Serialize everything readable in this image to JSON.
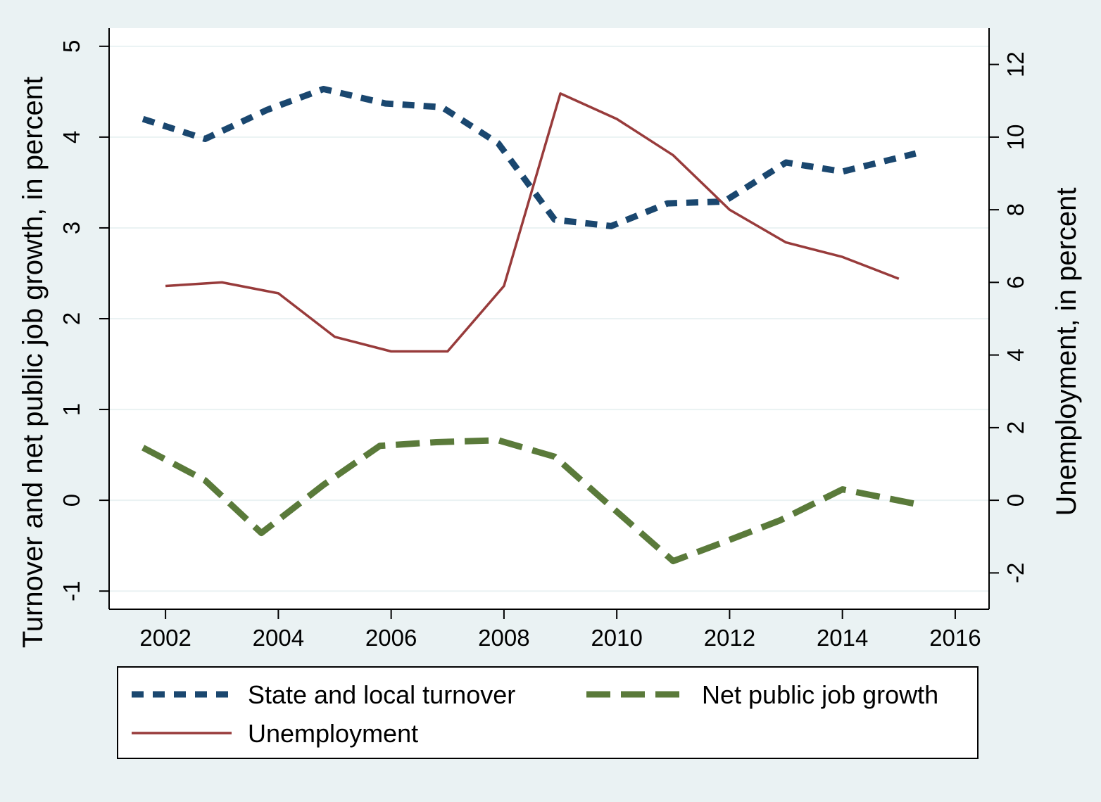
{
  "chart_data": {
    "type": "line",
    "xlabel": "",
    "ylabel": "Turnover and net public job growth, in percent",
    "y2label": "Unemployment, in percent",
    "xlim": [
      2001.0,
      2016.6
    ],
    "ylim": [
      -1.2,
      5.2
    ],
    "y2lim": [
      -3.0,
      13.0
    ],
    "x_ticks": [
      "2002",
      "2004",
      "2006",
      "2008",
      "2010",
      "2012",
      "2014",
      "2016"
    ],
    "y_ticks": [
      "-1",
      "0",
      "1",
      "2",
      "3",
      "4",
      "5"
    ],
    "y2_ticks": [
      "-2",
      "0",
      "2",
      "4",
      "6",
      "8",
      "10",
      "12"
    ],
    "grid": true,
    "legend_position": "bottom",
    "series": [
      {
        "name": "State and local turnover",
        "axis": "left",
        "color": "#1a476f",
        "style": "short-dash",
        "points": [
          [
            2001.6,
            4.2
          ],
          [
            2002.7,
            3.98
          ],
          [
            2003.8,
            4.3
          ],
          [
            2004.8,
            4.53
          ],
          [
            2005.9,
            4.37
          ],
          [
            2006.9,
            4.33
          ],
          [
            2007.9,
            3.93
          ],
          [
            2008.9,
            3.09
          ],
          [
            2009.9,
            3.02
          ],
          [
            2010.9,
            3.27
          ],
          [
            2011.9,
            3.29
          ],
          [
            2013.0,
            3.72
          ],
          [
            2014.0,
            3.62
          ],
          [
            2015.3,
            3.82
          ]
        ]
      },
      {
        "name": "Net public job growth",
        "axis": "left",
        "color": "#5a7a3a",
        "style": "long-dash",
        "points": [
          [
            2001.6,
            0.58
          ],
          [
            2002.7,
            0.22
          ],
          [
            2003.7,
            -0.36
          ],
          [
            2004.8,
            0.17
          ],
          [
            2005.8,
            0.6
          ],
          [
            2006.8,
            0.64
          ],
          [
            2007.9,
            0.66
          ],
          [
            2008.9,
            0.48
          ],
          [
            2009.9,
            -0.07
          ],
          [
            2011.0,
            -0.67
          ],
          [
            2011.9,
            -0.46
          ],
          [
            2012.9,
            -0.22
          ],
          [
            2014.0,
            0.12
          ],
          [
            2015.3,
            -0.04
          ]
        ]
      },
      {
        "name": "Unemployment",
        "axis": "right",
        "color": "#983b3b",
        "style": "solid",
        "points": [
          [
            2002.0,
            5.9
          ],
          [
            2003.0,
            6.0
          ],
          [
            2004.0,
            5.7
          ],
          [
            2005.0,
            4.5
          ],
          [
            2006.0,
            4.1
          ],
          [
            2007.0,
            4.1
          ],
          [
            2008.0,
            5.9
          ],
          [
            2009.0,
            11.2
          ],
          [
            2010.0,
            10.5
          ],
          [
            2011.0,
            9.5
          ],
          [
            2012.0,
            8.0
          ],
          [
            2013.0,
            7.1
          ],
          [
            2014.0,
            6.7
          ],
          [
            2015.0,
            6.1
          ]
        ]
      }
    ],
    "legend": [
      {
        "label": "State and local turnover",
        "series": 0
      },
      {
        "label": "Net public job growth",
        "series": 1
      },
      {
        "label": "Unemployment",
        "series": 2
      }
    ]
  }
}
